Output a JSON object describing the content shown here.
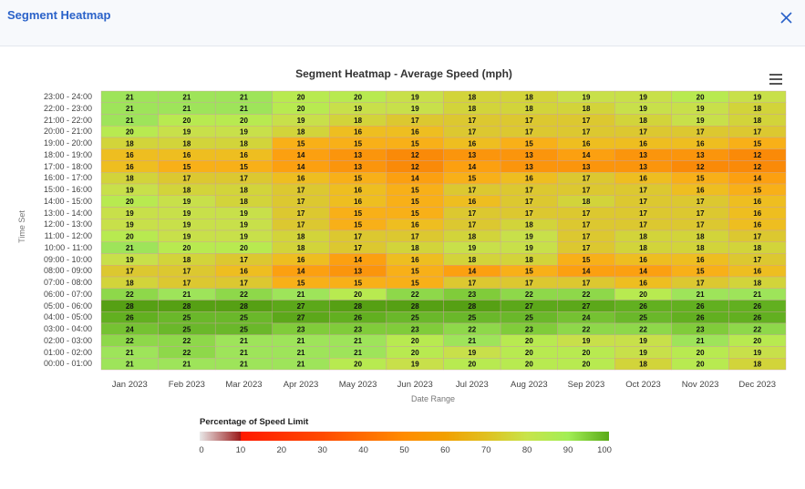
{
  "header": {
    "title": "Segment Heatmap",
    "close_icon": "close-icon"
  },
  "menu_icon": "hamburger-menu-icon",
  "chart_data": {
    "type": "heatmap",
    "title": "Segment Heatmap - Average Speed (mph)",
    "xlabel": "Date Range",
    "ylabel": "Time Set",
    "x_categories": [
      "Jan 2023",
      "Feb 2023",
      "Mar 2023",
      "Apr 2023",
      "May 2023",
      "Jun 2023",
      "Jul 2023",
      "Aug 2023",
      "Sep 2023",
      "Oct 2023",
      "Nov 2023",
      "Dec 2023"
    ],
    "y_categories": [
      "23:00 - 24:00",
      "22:00 - 23:00",
      "21:00 - 22:00",
      "20:00 - 21:00",
      "19:00 - 20:00",
      "18:00 - 19:00",
      "17:00 - 18:00",
      "16:00 - 17:00",
      "15:00 - 16:00",
      "14:00 - 15:00",
      "13:00 - 14:00",
      "12:00 - 13:00",
      "11:00 - 12:00",
      "10:00 - 11:00",
      "09:00 - 10:00",
      "08:00 - 09:00",
      "07:00 - 08:00",
      "06:00 - 07:00",
      "05:00 - 06:00",
      "04:00 - 05:00",
      "03:00 - 04:00",
      "02:00 - 03:00",
      "01:00 - 02:00",
      "00:00 - 01:00"
    ],
    "values": [
      [
        21,
        21,
        21,
        20,
        20,
        19,
        18,
        18,
        19,
        19,
        20,
        19
      ],
      [
        21,
        21,
        21,
        20,
        19,
        19,
        18,
        18,
        18,
        19,
        19,
        18
      ],
      [
        21,
        20,
        20,
        19,
        18,
        17,
        17,
        17,
        17,
        18,
        19,
        18
      ],
      [
        20,
        19,
        19,
        18,
        16,
        16,
        17,
        17,
        17,
        17,
        17,
        17
      ],
      [
        18,
        18,
        18,
        15,
        15,
        15,
        16,
        15,
        16,
        16,
        16,
        15
      ],
      [
        16,
        16,
        16,
        14,
        13,
        12,
        13,
        13,
        14,
        13,
        13,
        12
      ],
      [
        16,
        15,
        15,
        14,
        13,
        12,
        14,
        13,
        13,
        13,
        12,
        12
      ],
      [
        18,
        17,
        17,
        16,
        15,
        14,
        15,
        16,
        17,
        16,
        15,
        14
      ],
      [
        19,
        18,
        18,
        17,
        16,
        15,
        17,
        17,
        17,
        17,
        16,
        15
      ],
      [
        20,
        19,
        18,
        17,
        16,
        15,
        16,
        17,
        18,
        17,
        17,
        16
      ],
      [
        19,
        19,
        19,
        17,
        15,
        15,
        17,
        17,
        17,
        17,
        17,
        16
      ],
      [
        19,
        19,
        19,
        17,
        15,
        16,
        17,
        18,
        17,
        17,
        17,
        16
      ],
      [
        20,
        19,
        19,
        18,
        17,
        17,
        18,
        19,
        17,
        18,
        18,
        17
      ],
      [
        21,
        20,
        20,
        18,
        17,
        18,
        19,
        19,
        17,
        18,
        18,
        18
      ],
      [
        19,
        18,
        17,
        16,
        14,
        16,
        18,
        18,
        15,
        16,
        16,
        17
      ],
      [
        17,
        17,
        16,
        14,
        13,
        15,
        14,
        15,
        14,
        14,
        15,
        16
      ],
      [
        18,
        17,
        17,
        15,
        15,
        15,
        17,
        17,
        17,
        16,
        17,
        18
      ],
      [
        22,
        21,
        22,
        21,
        20,
        22,
        23,
        22,
        22,
        20,
        21,
        21
      ],
      [
        28,
        28,
        28,
        27,
        28,
        28,
        28,
        27,
        27,
        26,
        26,
        26
      ],
      [
        26,
        25,
        25,
        27,
        26,
        25,
        25,
        25,
        24,
        25,
        26,
        26
      ],
      [
        24,
        25,
        25,
        23,
        23,
        23,
        22,
        23,
        22,
        22,
        23,
        22
      ],
      [
        22,
        22,
        21,
        21,
        21,
        20,
        21,
        20,
        19,
        19,
        21,
        20
      ],
      [
        21,
        22,
        21,
        21,
        21,
        20,
        19,
        20,
        20,
        19,
        20,
        19
      ],
      [
        21,
        21,
        21,
        21,
        20,
        19,
        20,
        20,
        20,
        18,
        20,
        18
      ]
    ],
    "colorbar": {
      "title": "Percentage of Speed Limit",
      "ticks": [
        "0",
        "10",
        "20",
        "30",
        "40",
        "50",
        "60",
        "70",
        "80",
        "90",
        "100"
      ],
      "range": [
        0,
        100
      ]
    }
  }
}
